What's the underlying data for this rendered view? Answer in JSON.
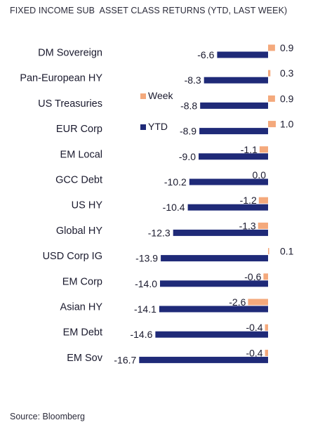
{
  "chart_title": "FIXED INCOME SUB  ASSET CLASS RETURNS (YTD, LAST WEEK)",
  "source": "Source: Bloomberg",
  "colors": {
    "ytd": "#1f2a78",
    "week": "#f4a97c",
    "text": "#1a1a2e"
  },
  "chart_data": {
    "type": "bar",
    "orientation": "horizontal",
    "title": "FIXED INCOME SUB  ASSET CLASS RETURNS (YTD, LAST WEEK)",
    "categories": [
      "DM Sovereign",
      "Pan-European HY",
      "US Treasuries",
      "EUR Corp",
      "EM Local",
      "GCC Debt",
      "US HY",
      "Global HY",
      "USD Corp IG",
      "EM Corp",
      "Asian HY",
      "EM Debt",
      "EM Sov"
    ],
    "series": [
      {
        "name": "YTD",
        "values": [
          -6.6,
          -8.3,
          -8.8,
          -8.9,
          -9.0,
          -10.2,
          -10.4,
          -12.3,
          -13.9,
          -14.0,
          -14.1,
          -14.6,
          -16.7
        ],
        "labels": [
          "-6.6",
          "-8.3",
          "-8.8",
          "-8.9",
          "-9.0",
          "-10.2",
          "-10.4",
          "-12.3",
          "-13.9",
          "-14.0",
          "-14.1",
          "-14.6",
          "-16.7"
        ]
      },
      {
        "name": "Week",
        "values": [
          0.9,
          0.3,
          0.9,
          1.0,
          -1.1,
          0.0,
          -1.2,
          -1.3,
          0.1,
          -0.6,
          -2.6,
          -0.4,
          -0.4
        ],
        "labels": [
          "0.9",
          "0.3",
          "0.9",
          "1.0",
          "-1.1",
          "0.0",
          "-1.2",
          "-1.3",
          "0.1",
          "-0.6",
          "-2.6",
          "-0.4",
          "-0.4"
        ]
      }
    ],
    "legend": {
      "position": "upper-left-inside",
      "order": [
        "Week",
        "YTD"
      ]
    },
    "grid": false,
    "xlim": [
      -17.5,
      1.5
    ]
  }
}
